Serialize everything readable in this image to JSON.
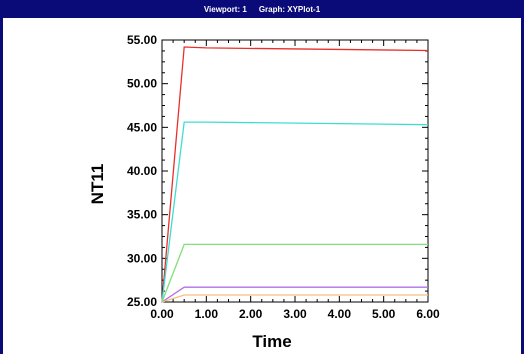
{
  "window": {
    "viewport_label": "Viewport: 1",
    "graph_label": "Graph: XYPlot-1"
  },
  "chart_data": {
    "type": "line",
    "title": "",
    "xlabel": "Time",
    "ylabel": "NT11",
    "xlim": [
      0,
      6
    ],
    "ylim": [
      25,
      55
    ],
    "xticks": [
      "0.00",
      "1.00",
      "2.00",
      "3.00",
      "4.00",
      "5.00",
      "6.00"
    ],
    "yticks": [
      "25.00",
      "30.00",
      "35.00",
      "40.00",
      "45.00",
      "50.00",
      "55.00"
    ],
    "grid": false,
    "legend": "none",
    "series": [
      {
        "color": "#e8302a",
        "x": [
          0,
          0.5,
          1,
          6
        ],
        "y": [
          25,
          54.2,
          54.1,
          53.8
        ]
      },
      {
        "color": "#40dcd2",
        "x": [
          0,
          0.5,
          1,
          6
        ],
        "y": [
          25,
          45.6,
          45.6,
          45.3
        ]
      },
      {
        "color": "#7ee07a",
        "x": [
          0,
          0.5,
          1,
          6
        ],
        "y": [
          25,
          31.6,
          31.6,
          31.6
        ]
      },
      {
        "color": "#b070e8",
        "x": [
          0,
          0.5,
          1,
          6
        ],
        "y": [
          25,
          26.7,
          26.7,
          26.7
        ]
      },
      {
        "color": "#f4c080",
        "x": [
          0,
          0.5,
          1,
          6
        ],
        "y": [
          25,
          25.8,
          25.8,
          25.8
        ]
      }
    ]
  }
}
